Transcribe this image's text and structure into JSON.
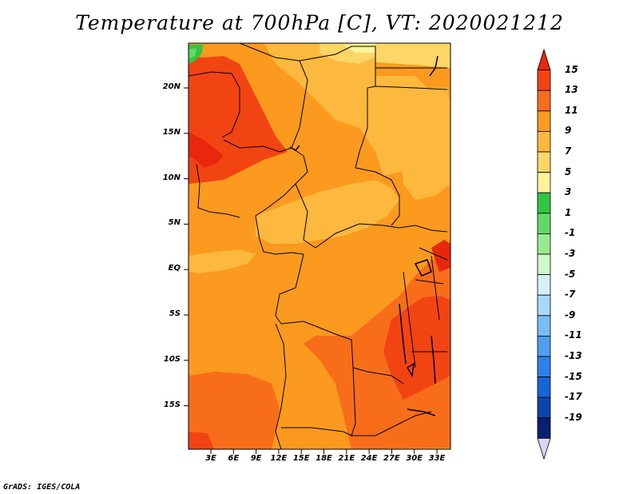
{
  "title": "Temperature at 700hPa [C], VT: 2020021212",
  "credit": "GrADS: IGES/COLA",
  "chart_data": {
    "type": "heatmap",
    "title": "Temperature at 700hPa [C], VT: 2020021212",
    "variable": "Temperature",
    "level": "700hPa",
    "units": "C",
    "valid_time": "2020021212",
    "lat_ticks": [
      "20N",
      "15N",
      "10N",
      "5N",
      "EQ",
      "5S",
      "10S",
      "15S"
    ],
    "lon_ticks": [
      "3E",
      "6E",
      "9E",
      "12E",
      "15E",
      "18E",
      "21E",
      "24E",
      "27E",
      "30E",
      "33E"
    ],
    "colorbar": {
      "labels": [
        "15",
        "13",
        "11",
        "9",
        "7",
        "5",
        "3",
        "1",
        "-1",
        "-3",
        "-5",
        "-7",
        "-9",
        "-11",
        "-13",
        "-15",
        "-17",
        "-19"
      ],
      "colors": [
        "#e8270d",
        "#f24412",
        "#f86d1a",
        "#fb9a1e",
        "#fdb83e",
        "#fed667",
        "#fef39a",
        "#33c443",
        "#62d966",
        "#97eb8d",
        "#cff8ca",
        "#d6f0fb",
        "#a8d9f8",
        "#78bdf4",
        "#4f9ef0",
        "#2f80e8",
        "#1664d6",
        "#0a44ad",
        "#0a1f6e",
        "#d7d8f5"
      ]
    },
    "field_colors": {
      "t13": "#e8270d",
      "t11": "#f24412",
      "t9": "#f86d1a",
      "t7": "#fb9a1e",
      "t5": "#fdb83e",
      "t3": "#fed667",
      "t1": "#fef39a",
      "green": "#33c443",
      "lightgreen": "#62d966"
    }
  }
}
